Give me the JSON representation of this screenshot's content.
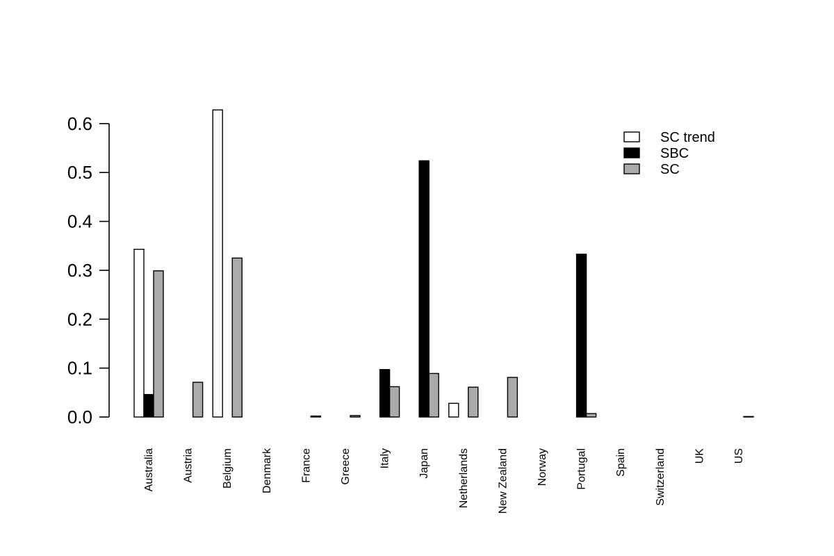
{
  "chart_data": {
    "type": "bar",
    "title": "",
    "xlabel": "",
    "ylabel": "",
    "ylim": [
      0,
      0.6
    ],
    "yticks": [
      0.0,
      0.1,
      0.2,
      0.3,
      0.4,
      0.5,
      0.6
    ],
    "ytick_labels": [
      "0.0",
      "0.1",
      "0.2",
      "0.3",
      "0.4",
      "0.5",
      "0.6"
    ],
    "grid": false,
    "legend_position": "top-right",
    "categories": [
      "Australia",
      "Austria",
      "Belgium",
      "Denmark",
      "France",
      "Greece",
      "Italy",
      "Japan",
      "Netherlands",
      "New Zealand",
      "Norway",
      "Portugal",
      "Spain",
      "Switzerland",
      "UK",
      "US"
    ],
    "series": [
      {
        "name": "SC trend",
        "color": "#ffffff",
        "values": [
          0.343,
          0.0,
          0.628,
          0.0,
          0.0,
          0.0,
          0.0,
          0.0,
          0.028,
          0.0,
          0.0,
          0.0,
          0.0,
          0.0,
          0.0,
          0.0
        ]
      },
      {
        "name": "SBC",
        "color": "#000000",
        "values": [
          0.046,
          0.0,
          0.0,
          0.0,
          0.0,
          0.0,
          0.097,
          0.524,
          0.0,
          0.0,
          0.0,
          0.333,
          0.0,
          0.0,
          0.0,
          0.0
        ]
      },
      {
        "name": "SC",
        "color": "#aaaaaa",
        "values": [
          0.299,
          0.071,
          0.325,
          0.0,
          0.002,
          0.003,
          0.062,
          0.089,
          0.061,
          0.081,
          0.0,
          0.007,
          0.0,
          0.0,
          0.0,
          0.001
        ]
      }
    ]
  }
}
